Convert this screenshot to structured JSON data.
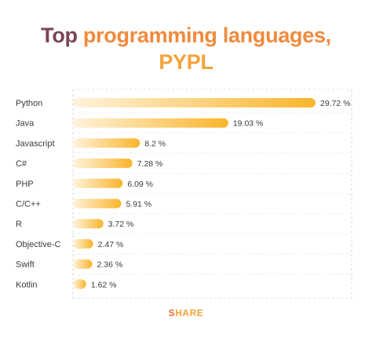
{
  "header": {
    "title_part1": "Top ",
    "title_part2": "programming languages,",
    "title_part3": "PYPL"
  },
  "footer": {
    "brand_part1": "S",
    "brand_part2": "HARE"
  },
  "colors": {
    "title_dark": "#7a4556",
    "title_accent": "#f08a3c",
    "bar_start": "#fff3dc",
    "bar_end": "#f9b52c",
    "label_text": "#3a3a3a"
  },
  "chart_data": {
    "type": "bar",
    "orientation": "horizontal",
    "title": "Top programming languages, PYPL",
    "categories": [
      "Python",
      "Java",
      "Javascript",
      "C#",
      "PHP",
      "C/C++",
      "R",
      "Objective-C",
      "Swift",
      "Kotlin"
    ],
    "values": [
      29.72,
      19.03,
      8.2,
      7.28,
      6.09,
      5.91,
      3.72,
      2.47,
      2.36,
      1.62
    ],
    "value_labels": [
      "29.72 %",
      "19.03 %",
      "8.2 %",
      "7.28 %",
      "6.09 %",
      "5.91 %",
      "3.72 %",
      "2.47 %",
      "2.36 %",
      "1.62 %"
    ],
    "xlim": [
      0,
      29.72
    ],
    "grid": true
  }
}
